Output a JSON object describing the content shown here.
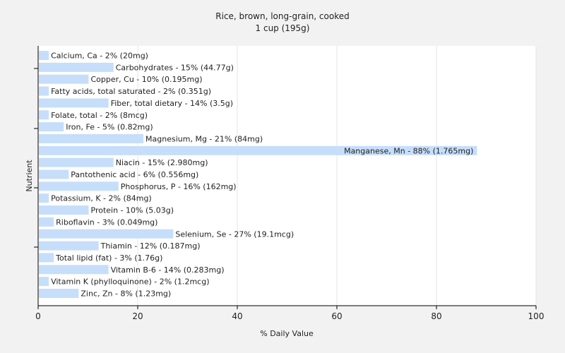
{
  "chart_data": {
    "type": "bar",
    "orientation": "horizontal",
    "title": "Rice, brown, long-grain, cooked",
    "subtitle": "1 cup (195g)",
    "xlabel": "% Daily Value",
    "ylabel": "Nutrient",
    "xlim": [
      0,
      100
    ],
    "xticks": [
      0,
      20,
      40,
      60,
      80,
      100
    ],
    "grid": true,
    "bar_color": "#c6defa",
    "categories": [
      "Calcium, Ca - 2% (20mg)",
      "Carbohydrates - 15% (44.77g)",
      "Copper, Cu - 10% (0.195mg)",
      "Fatty acids, total saturated - 2% (0.351g)",
      "Fiber, total dietary - 14% (3.5g)",
      "Folate, total - 2% (8mcg)",
      "Iron, Fe - 5% (0.82mg)",
      "Magnesium, Mg - 21% (84mg)",
      "Manganese, Mn - 88% (1.765mg)",
      "Niacin - 15% (2.980mg)",
      "Pantothenic acid - 6% (0.556mg)",
      "Phosphorus, P - 16% (162mg)",
      "Potassium, K - 2% (84mg)",
      "Protein - 10% (5.03g)",
      "Riboflavin - 3% (0.049mg)",
      "Selenium, Se - 27% (19.1mcg)",
      "Thiamin - 12% (0.187mg)",
      "Total lipid (fat) - 3% (1.76g)",
      "Vitamin B-6 - 14% (0.283mg)",
      "Vitamin K (phylloquinone) - 2% (1.2mcg)",
      "Zinc, Zn - 8% (1.23mg)"
    ],
    "values": [
      2,
      15,
      10,
      2,
      14,
      2,
      5,
      21,
      88,
      15,
      6,
      16,
      2,
      10,
      3,
      27,
      12,
      3,
      14,
      2,
      8
    ]
  }
}
